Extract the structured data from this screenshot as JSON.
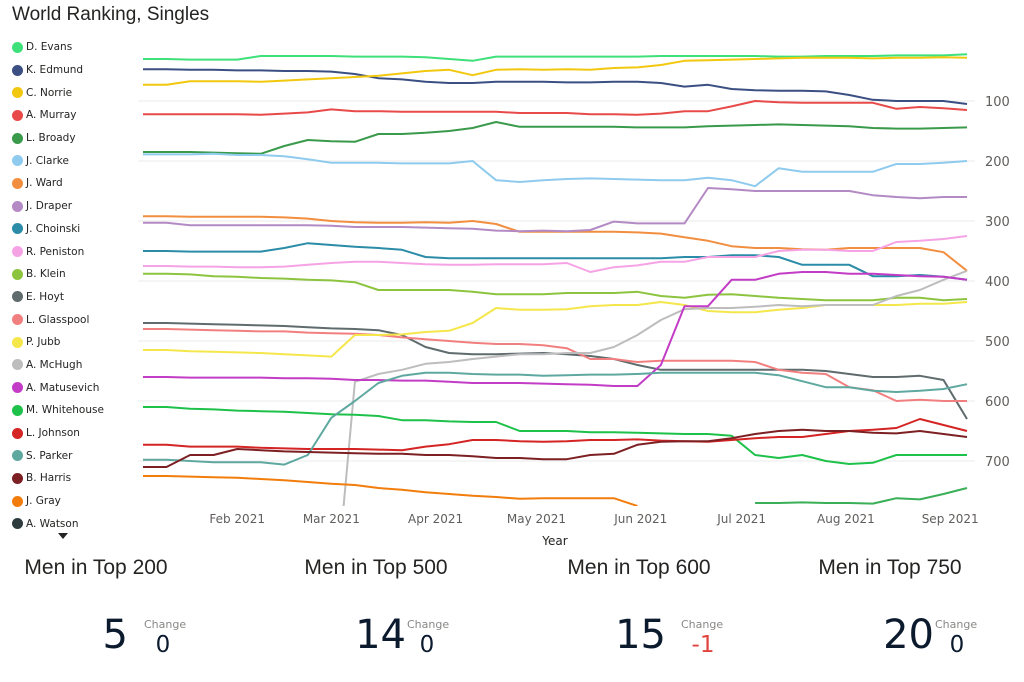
{
  "title": "World Ranking, Singles",
  "legend_more_icon": "caret-down",
  "chart_data": {
    "type": "line",
    "title": "World Ranking, Singles",
    "xlabel": "Year",
    "ylabel": "",
    "y_inverted": true,
    "ylim": [
      0,
      780
    ],
    "yticks": [
      100,
      200,
      300,
      400,
      500,
      600,
      700
    ],
    "y_axis_side": "right",
    "grid": true,
    "legend": "left",
    "x_start": "2021-01-04",
    "x_interval_days": 7,
    "x_count": 36,
    "xticks": [
      {
        "label": "Feb 2021",
        "date": "2021-02-01"
      },
      {
        "label": "Mar 2021",
        "date": "2021-03-01"
      },
      {
        "label": "Apr 2021",
        "date": "2021-04-01"
      },
      {
        "label": "May 2021",
        "date": "2021-05-01"
      },
      {
        "label": "Jun 2021",
        "date": "2021-06-01"
      },
      {
        "label": "Jul 2021",
        "date": "2021-07-01"
      },
      {
        "label": "Aug 2021",
        "date": "2021-08-01"
      },
      {
        "label": "Sep 2021",
        "date": "2021-09-01"
      }
    ],
    "series": [
      {
        "name": "D. Evans",
        "color": "#3ee07a",
        "values": [
          30,
          30,
          31,
          31,
          31,
          25,
          25,
          25,
          25,
          26,
          26,
          26,
          27,
          30,
          33,
          26,
          26,
          26,
          26,
          26,
          26,
          26,
          25,
          25,
          25,
          25,
          25,
          26,
          26,
          25,
          25,
          25,
          24,
          24,
          24,
          22
        ]
      },
      {
        "name": "K. Edmund",
        "color": "#3b4f82",
        "values": [
          47,
          47,
          48,
          48,
          49,
          49,
          50,
          50,
          51,
          55,
          62,
          64,
          68,
          70,
          70,
          68,
          68,
          68,
          69,
          69,
          68,
          68,
          70,
          76,
          73,
          80,
          82,
          83,
          83,
          84,
          90,
          98,
          100,
          100,
          100,
          105
        ]
      },
      {
        "name": "C. Norrie",
        "color": "#f2c80f",
        "values": [
          73,
          73,
          67,
          67,
          67,
          68,
          66,
          64,
          62,
          60,
          58,
          54,
          50,
          48,
          57,
          48,
          47,
          48,
          47,
          48,
          45,
          44,
          40,
          33,
          32,
          31,
          30,
          29,
          28,
          28,
          28,
          29,
          28,
          28,
          27,
          28
        ]
      },
      {
        "name": "A. Murray",
        "color": "#e84a4a",
        "values": [
          122,
          122,
          122,
          122,
          122,
          123,
          121,
          119,
          114,
          117,
          117,
          118,
          118,
          118,
          118,
          118,
          120,
          120,
          120,
          122,
          122,
          123,
          121,
          117,
          117,
          109,
          100,
          102,
          103,
          103,
          103,
          103,
          113,
          110,
          112,
          115
        ]
      },
      {
        "name": "L. Broady",
        "color": "#3a9a4b",
        "values": [
          185,
          185,
          185,
          186,
          187,
          188,
          175,
          165,
          167,
          168,
          155,
          155,
          153,
          150,
          145,
          135,
          143,
          143,
          143,
          143,
          143,
          144,
          144,
          144,
          142,
          141,
          140,
          139,
          140,
          141,
          142,
          145,
          146,
          146,
          145,
          144
        ]
      },
      {
        "name": "J. Clarke",
        "color": "#8fcbee",
        "values": [
          189,
          189,
          189,
          188,
          190,
          190,
          192,
          197,
          203,
          203,
          203,
          204,
          204,
          204,
          200,
          232,
          235,
          232,
          230,
          229,
          230,
          231,
          232,
          232,
          228,
          232,
          242,
          212,
          218,
          218,
          218,
          218,
          205,
          205,
          203,
          200
        ]
      },
      {
        "name": "J. Ward",
        "color": "#f28e3f",
        "values": [
          292,
          292,
          293,
          293,
          293,
          293,
          294,
          296,
          300,
          302,
          303,
          303,
          302,
          303,
          300,
          305,
          318,
          318,
          318,
          318,
          318,
          319,
          321,
          327,
          333,
          342,
          345,
          345,
          347,
          348,
          345,
          345,
          345,
          345,
          352,
          383
        ]
      },
      {
        "name": "J. Draper",
        "color": "#b38ac4",
        "values": [
          303,
          303,
          307,
          307,
          307,
          307,
          307,
          307,
          308,
          310,
          310,
          310,
          311,
          312,
          313,
          316,
          317,
          316,
          317,
          315,
          301,
          304,
          304,
          304,
          245,
          247,
          250,
          250,
          250,
          250,
          250,
          257,
          260,
          262,
          260,
          260
        ]
      },
      {
        "name": "J. Choinski",
        "color": "#2b8ca8",
        "values": [
          350,
          350,
          351,
          351,
          351,
          351,
          345,
          337,
          340,
          343,
          345,
          348,
          360,
          362,
          362,
          362,
          362,
          362,
          362,
          362,
          362,
          362,
          362,
          360,
          360,
          357,
          357,
          360,
          373,
          373,
          373,
          392,
          392,
          390,
          393,
          398
        ]
      },
      {
        "name": "R. Peniston",
        "color": "#f5a3e5",
        "values": [
          375,
          375,
          376,
          376,
          377,
          377,
          376,
          373,
          370,
          368,
          368,
          370,
          372,
          373,
          373,
          372,
          372,
          372,
          370,
          385,
          377,
          374,
          368,
          368,
          360,
          360,
          360,
          350,
          348,
          348,
          350,
          350,
          335,
          333,
          330,
          325
        ]
      },
      {
        "name": "B. Klein",
        "color": "#8dc43f",
        "values": [
          388,
          388,
          389,
          392,
          393,
          395,
          396,
          398,
          399,
          402,
          415,
          415,
          415,
          415,
          418,
          422,
          422,
          422,
          420,
          420,
          420,
          418,
          425,
          428,
          423,
          422,
          425,
          428,
          430,
          432,
          432,
          432,
          428,
          428,
          432,
          430
        ]
      },
      {
        "name": "E. Hoyt",
        "color": "#5f6b6d",
        "values": [
          470,
          470,
          471,
          472,
          473,
          474,
          475,
          477,
          479,
          480,
          482,
          490,
          510,
          520,
          522,
          522,
          521,
          520,
          522,
          525,
          530,
          540,
          548,
          548,
          548,
          548,
          548,
          548,
          548,
          550,
          555,
          560,
          560,
          558,
          565,
          630
        ]
      },
      {
        "name": "L. Glasspool",
        "color": "#f27f7f",
        "values": [
          480,
          480,
          481,
          482,
          483,
          484,
          484,
          486,
          487,
          488,
          490,
          494,
          497,
          500,
          503,
          505,
          505,
          507,
          512,
          530,
          530,
          535,
          533,
          533,
          533,
          533,
          535,
          548,
          553,
          555,
          577,
          582,
          600,
          598,
          600,
          600
        ]
      },
      {
        "name": "P. Jubb",
        "color": "#f5e74b",
        "values": [
          515,
          515,
          517,
          518,
          519,
          520,
          522,
          524,
          526,
          490,
          490,
          489,
          485,
          483,
          470,
          445,
          448,
          448,
          447,
          442,
          440,
          440,
          435,
          440,
          450,
          452,
          452,
          448,
          445,
          440,
          440,
          440,
          440,
          438,
          438,
          435
        ]
      },
      {
        "name": "A. McHugh",
        "color": "#bdbdbd",
        "values": [
          1000,
          1000,
          1000,
          1000,
          1000,
          1000,
          1000,
          1000,
          1000,
          568,
          555,
          548,
          538,
          535,
          530,
          526,
          522,
          522,
          520,
          520,
          510,
          490,
          465,
          447,
          445,
          445,
          443,
          440,
          442,
          440,
          440,
          440,
          425,
          415,
          398,
          383
        ]
      },
      {
        "name": "A. Matusevich",
        "color": "#c33cc6",
        "values": [
          560,
          560,
          561,
          561,
          561,
          561,
          562,
          562,
          563,
          565,
          565,
          566,
          566,
          568,
          570,
          570,
          570,
          571,
          572,
          573,
          575,
          575,
          540,
          442,
          442,
          398,
          398,
          388,
          385,
          385,
          388,
          388,
          390,
          392,
          393,
          398
        ]
      },
      {
        "name": "M. Whitehouse",
        "color": "#1ec14a",
        "values": [
          610,
          610,
          613,
          614,
          616,
          617,
          618,
          620,
          622,
          623,
          625,
          632,
          632,
          634,
          635,
          635,
          650,
          650,
          650,
          652,
          652,
          653,
          654,
          655,
          655,
          658,
          690,
          695,
          690,
          700,
          705,
          703,
          690,
          690,
          690,
          690
        ]
      },
      {
        "name": "L. Johnson",
        "color": "#d42424",
        "values": [
          673,
          673,
          676,
          676,
          676,
          678,
          679,
          680,
          680,
          680,
          681,
          682,
          676,
          672,
          665,
          665,
          667,
          668,
          667,
          665,
          665,
          664,
          666,
          667,
          668,
          665,
          662,
          660,
          660,
          655,
          650,
          648,
          645,
          630,
          640,
          650
        ]
      },
      {
        "name": "S. Parker",
        "color": "#5fa8a0",
        "values": [
          698,
          698,
          700,
          702,
          702,
          702,
          706,
          690,
          628,
          600,
          570,
          558,
          553,
          553,
          555,
          556,
          556,
          558,
          557,
          556,
          556,
          555,
          553,
          553,
          553,
          553,
          553,
          557,
          567,
          577,
          577,
          583,
          585,
          583,
          580,
          572
        ]
      },
      {
        "name": "B. Harris",
        "color": "#7d2024",
        "values": [
          710,
          710,
          690,
          690,
          680,
          682,
          684,
          685,
          686,
          687,
          688,
          688,
          690,
          690,
          692,
          695,
          695,
          697,
          697,
          690,
          688,
          673,
          668,
          667,
          667,
          662,
          655,
          650,
          648,
          650,
          650,
          653,
          654,
          650,
          655,
          660
        ]
      },
      {
        "name": "J. Gray",
        "color": "#f27d0c",
        "values": [
          725,
          725,
          726,
          727,
          728,
          730,
          732,
          735,
          738,
          740,
          745,
          748,
          752,
          755,
          758,
          760,
          763,
          762,
          762,
          762,
          762,
          775,
          null,
          null,
          null,
          null,
          null,
          null,
          null,
          null,
          null,
          null,
          null,
          null,
          null,
          null
        ]
      },
      {
        "name": "A. Watson",
        "color": "#2e3b3e",
        "values": []
      },
      {
        "name": "",
        "color": "#3aaf57",
        "hidden_from_legend": true,
        "values": [
          null,
          null,
          null,
          null,
          null,
          null,
          null,
          null,
          null,
          null,
          null,
          null,
          null,
          null,
          null,
          null,
          null,
          null,
          null,
          null,
          null,
          null,
          null,
          null,
          null,
          null,
          770,
          770,
          769,
          770,
          770,
          771,
          762,
          764,
          755,
          745
        ]
      }
    ]
  },
  "kpis": [
    {
      "title": "Men in Top 200",
      "value": "5",
      "change_label": "Change",
      "change": "0",
      "change_negative": false
    },
    {
      "title": "Men in Top 500",
      "value": "14",
      "change_label": "Change",
      "change": "0",
      "change_negative": false
    },
    {
      "title": "Men in Top 600",
      "value": "15",
      "change_label": "Change",
      "change": "-1",
      "change_negative": true
    },
    {
      "title": "Men in Top 750",
      "value": "20",
      "change_label": "Change",
      "change": "0",
      "change_negative": false
    }
  ],
  "colors": {
    "text": "#252423",
    "kpi_value": "#0c1a2e",
    "negative": "#e0423d",
    "gridline": "#ebebeb"
  }
}
